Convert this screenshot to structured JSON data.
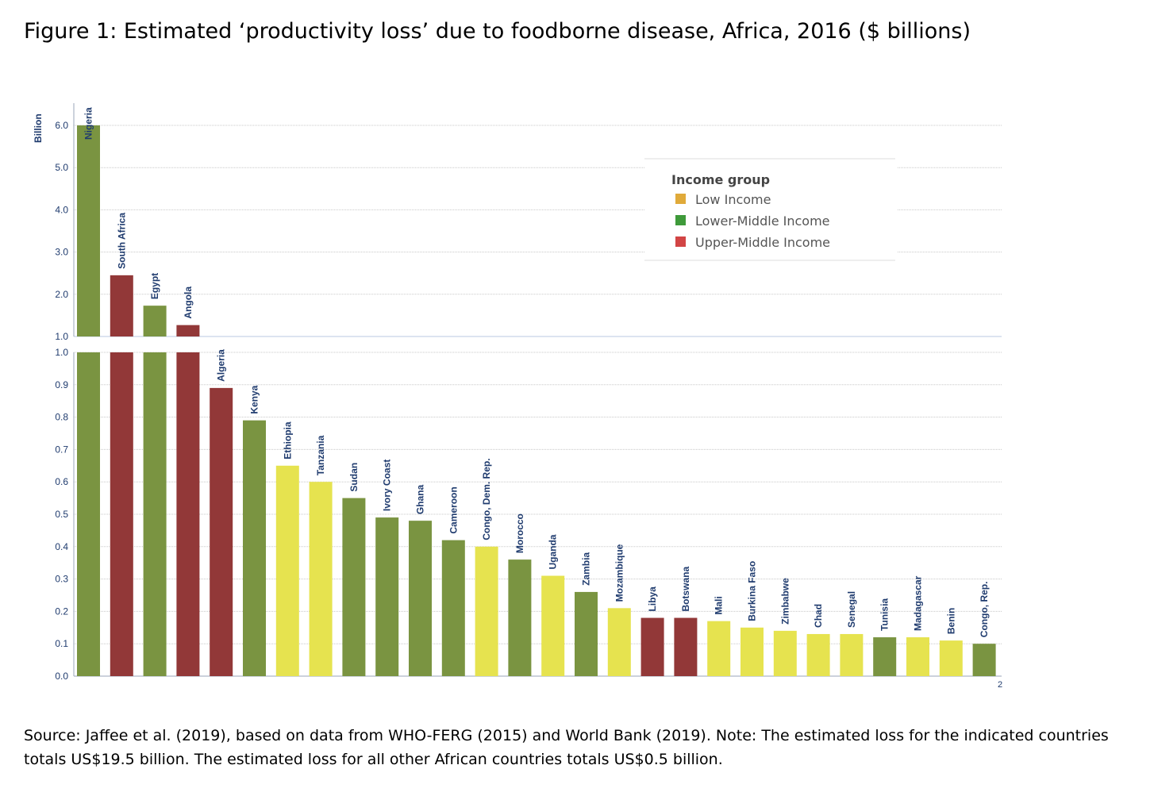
{
  "page": {
    "title": "Figure 1: Estimated ‘productivity loss’ due to foodborne disease, Africa, 2016 ($ billions)",
    "source": "Source: Jaffee et al. (2019), based on data from WHO-FERG (2015) and World Bank (2019). Note: The estimated loss for the indicated countries totals US$19.5 billion. The estimated loss for all other African countries totals US$0.5 billion.",
    "page_number": "2"
  },
  "colors": {
    "Low Income": "#e6e34f",
    "Lower-Middle Income": "#7a9441",
    "Upper-Middle Income": "#923838",
    "legend_low": "#e0aa3a",
    "legend_lower_middle": "#3f9a3a",
    "legend_upper_middle": "#d24545"
  },
  "chart_data": {
    "type": "bar",
    "ylabel": "Billion",
    "broken_axis": true,
    "upper_ylim": [
      1.0,
      6.0
    ],
    "upper_ticks": [
      "1.0",
      "2.0",
      "3.0",
      "4.0",
      "5.0",
      "6.0"
    ],
    "lower_ylim": [
      0.0,
      1.0
    ],
    "lower_ticks": [
      "0.0",
      "0.1",
      "0.2",
      "0.3",
      "0.4",
      "0.5",
      "0.6",
      "0.7",
      "0.8",
      "0.9",
      "1.0"
    ],
    "legend_title": "Income group",
    "legend": [
      "Low Income",
      "Lower-Middle Income",
      "Upper-Middle Income"
    ],
    "legend_position": "top-right",
    "grid": true,
    "categories": [
      "Nigeria",
      "South Africa",
      "Egypt",
      "Angola",
      "Algeria",
      "Kenya",
      "Ethiopia",
      "Tanzania",
      "Sudan",
      "Ivory Coast",
      "Ghana",
      "Cameroon",
      "Congo, Dem. Rep.",
      "Morocco",
      "Uganda",
      "Zambia",
      "Mozambique",
      "Libya",
      "Botswana",
      "Mali",
      "Burkina Faso",
      "Zimbabwe",
      "Chad",
      "Senegal",
      "Tunisia",
      "Madagascar",
      "Benin",
      "Congo, Rep."
    ],
    "values": [
      6.0,
      2.45,
      1.73,
      1.27,
      0.89,
      0.79,
      0.65,
      0.6,
      0.55,
      0.49,
      0.48,
      0.42,
      0.4,
      0.36,
      0.31,
      0.26,
      0.21,
      0.18,
      0.18,
      0.17,
      0.15,
      0.14,
      0.13,
      0.13,
      0.12,
      0.12,
      0.11,
      0.1
    ],
    "groups": [
      "Lower-Middle Income",
      "Upper-Middle Income",
      "Lower-Middle Income",
      "Upper-Middle Income",
      "Upper-Middle Income",
      "Lower-Middle Income",
      "Low Income",
      "Low Income",
      "Lower-Middle Income",
      "Lower-Middle Income",
      "Lower-Middle Income",
      "Lower-Middle Income",
      "Low Income",
      "Lower-Middle Income",
      "Low Income",
      "Lower-Middle Income",
      "Low Income",
      "Upper-Middle Income",
      "Upper-Middle Income",
      "Low Income",
      "Low Income",
      "Low Income",
      "Low Income",
      "Low Income",
      "Lower-Middle Income",
      "Low Income",
      "Low Income",
      "Lower-Middle Income"
    ]
  }
}
